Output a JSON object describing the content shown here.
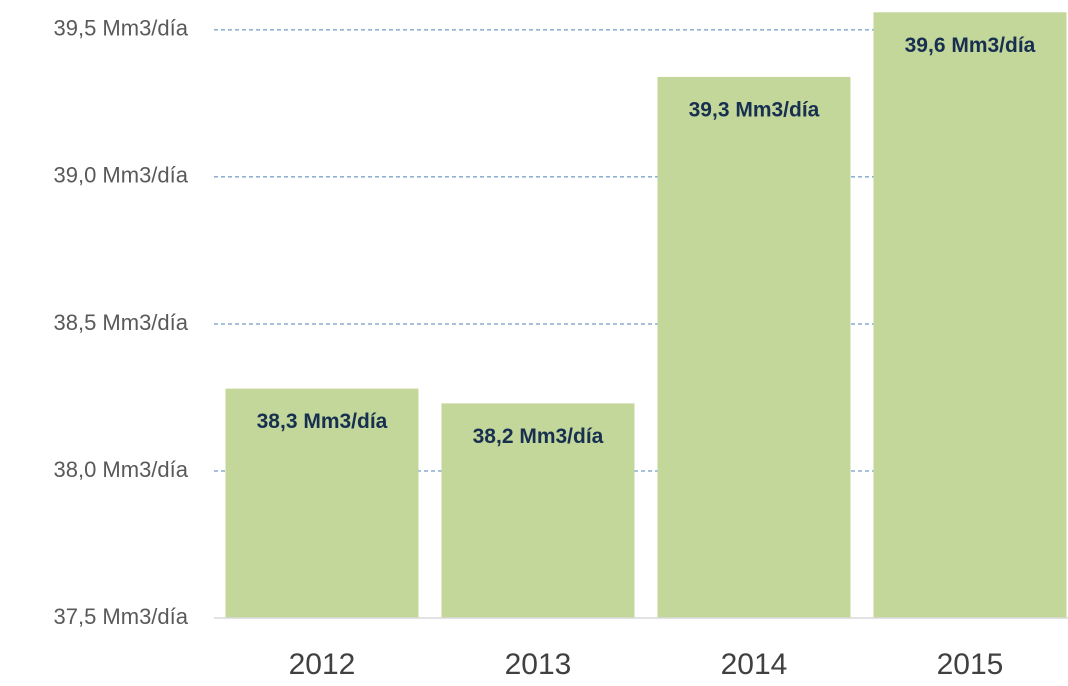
{
  "chart_data": {
    "type": "bar",
    "categories": [
      "2012",
      "2013",
      "2014",
      "2015"
    ],
    "values": [
      38.28,
      38.23,
      39.34,
      39.56
    ],
    "value_labels": [
      "38,3 Mm3/día",
      "38,2 Mm3/día",
      "39,3 Mm3/día",
      "39,6 Mm3/día"
    ],
    "color": "#c4d79b",
    "ylim": [
      37.5,
      39.6
    ],
    "yticks": [
      {
        "value": 37.5,
        "label": "37,5 Mm3/día"
      },
      {
        "value": 38.0,
        "label": "38,0 Mm3/día"
      },
      {
        "value": 38.5,
        "label": "38,5 Mm3/día"
      },
      {
        "value": 39.0,
        "label": "39,0 Mm3/día"
      },
      {
        "value": 39.5,
        "label": "39,5 Mm3/día"
      }
    ],
    "grid": true
  }
}
